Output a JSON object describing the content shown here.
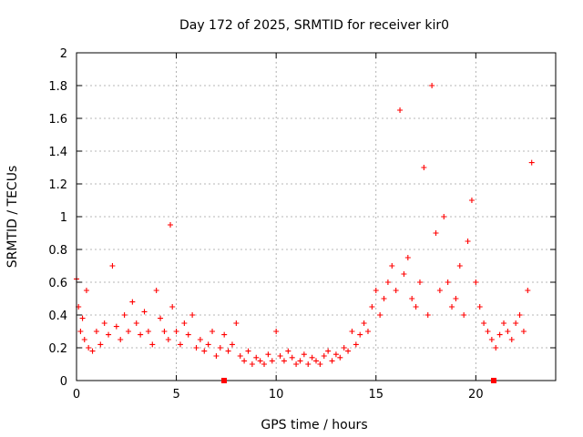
{
  "chart_data": {
    "type": "scatter",
    "title": "Day 172 of 2025, SRMTID for receiver kir0",
    "xlabel": "GPS time / hours",
    "ylabel": "SRMTID / TECUs",
    "xlim": [
      0,
      24
    ],
    "ylim": [
      0,
      2
    ],
    "xticks": [
      0,
      5,
      10,
      15,
      20
    ],
    "yticks": [
      0,
      0.2,
      0.4,
      0.6,
      0.8,
      1,
      1.2,
      1.4,
      1.6,
      1.8,
      2
    ],
    "xtick_labels": [
      "0",
      "5",
      "10",
      "15",
      "20"
    ],
    "ytick_labels": [
      "0",
      "0.2",
      "0.4",
      "0.6",
      "0.8",
      "1",
      "1.2",
      "1.4",
      "1.6",
      "1.8",
      "2"
    ],
    "grid": true,
    "marker": "plus",
    "color": "#ff0000",
    "series": [
      {
        "name": "SRMTID",
        "x": [
          0.0,
          0.1,
          0.2,
          0.3,
          0.4,
          0.5,
          0.6,
          0.8,
          1.0,
          1.2,
          1.4,
          1.6,
          1.8,
          2.0,
          2.2,
          2.4,
          2.6,
          2.8,
          3.0,
          3.2,
          3.4,
          3.6,
          3.8,
          4.0,
          4.2,
          4.4,
          4.6,
          4.7,
          4.8,
          5.0,
          5.2,
          5.4,
          5.6,
          5.8,
          6.0,
          6.2,
          6.4,
          6.6,
          6.8,
          7.0,
          7.2,
          7.4,
          7.6,
          7.8,
          8.0,
          8.2,
          8.4,
          8.6,
          8.8,
          9.0,
          9.2,
          9.4,
          9.6,
          9.8,
          10.0,
          10.2,
          10.4,
          10.6,
          10.8,
          11.0,
          11.2,
          11.4,
          11.6,
          11.8,
          12.0,
          12.2,
          12.4,
          12.6,
          12.8,
          13.0,
          13.2,
          13.4,
          13.6,
          13.8,
          14.0,
          14.2,
          14.4,
          14.6,
          14.8,
          15.0,
          15.2,
          15.4,
          15.6,
          15.8,
          16.0,
          16.2,
          16.4,
          16.6,
          16.8,
          17.0,
          17.2,
          17.4,
          17.6,
          17.8,
          18.0,
          18.2,
          18.4,
          18.6,
          18.8,
          19.0,
          19.2,
          19.4,
          19.6,
          19.8,
          20.0,
          20.2,
          20.4,
          20.6,
          20.8,
          21.0,
          21.2,
          21.4,
          21.6,
          21.8,
          22.0,
          22.2,
          22.4,
          22.6,
          22.8
        ],
        "y": [
          0.62,
          0.45,
          0.3,
          0.38,
          0.25,
          0.55,
          0.2,
          0.18,
          0.3,
          0.22,
          0.35,
          0.28,
          0.7,
          0.33,
          0.25,
          0.4,
          0.3,
          0.48,
          0.35,
          0.28,
          0.42,
          0.3,
          0.22,
          0.55,
          0.38,
          0.3,
          0.25,
          0.95,
          0.45,
          0.3,
          0.22,
          0.35,
          0.28,
          0.4,
          0.2,
          0.25,
          0.18,
          0.22,
          0.3,
          0.15,
          0.2,
          0.28,
          0.18,
          0.22,
          0.35,
          0.15,
          0.12,
          0.18,
          0.1,
          0.14,
          0.12,
          0.1,
          0.16,
          0.12,
          0.3,
          0.15,
          0.12,
          0.18,
          0.14,
          0.1,
          0.12,
          0.16,
          0.1,
          0.14,
          0.12,
          0.1,
          0.15,
          0.18,
          0.12,
          0.16,
          0.14,
          0.2,
          0.18,
          0.3,
          0.22,
          0.28,
          0.35,
          0.3,
          0.45,
          0.55,
          0.4,
          0.5,
          0.6,
          0.7,
          0.55,
          1.65,
          0.65,
          0.75,
          0.5,
          0.45,
          0.6,
          1.3,
          0.4,
          1.8,
          0.9,
          0.55,
          1.0,
          0.6,
          0.45,
          0.5,
          0.7,
          0.4,
          0.85,
          1.1,
          0.6,
          0.45,
          0.35,
          0.3,
          0.25,
          0.2,
          0.28,
          0.35,
          0.3,
          0.25,
          0.35,
          0.4,
          0.3,
          0.55,
          1.33
        ]
      }
    ]
  }
}
